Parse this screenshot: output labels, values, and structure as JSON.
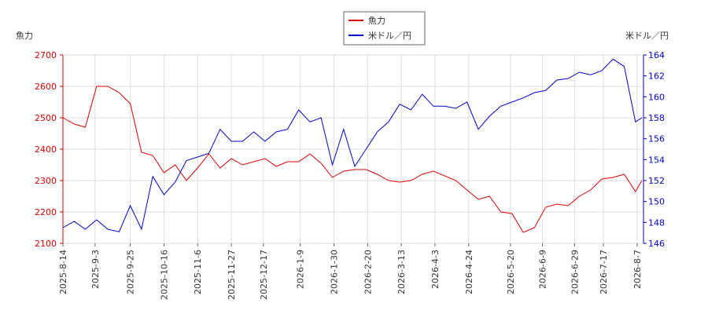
{
  "chart_data": {
    "type": "line",
    "ylabel": "魚力",
    "y2label": "米ドル／円",
    "x": [
      "2025-8-14",
      "2025-8-21",
      "2025-8-28",
      "2025-9-4",
      "2025-9-11",
      "2025-9-18",
      "2025-9-25",
      "2025-10-2",
      "2025-10-9",
      "2025-10-16",
      "2025-10-23",
      "2025-10-30",
      "2025-11-6",
      "2025-11-13",
      "2025-11-20",
      "2025-11-27",
      "2025-12-4",
      "2025-12-11",
      "2025-12-18",
      "2025-12-25",
      "2026-1-1",
      "2026-1-8",
      "2026-1-15",
      "2026-1-22",
      "2026-1-29",
      "2026-2-5",
      "2026-2-12",
      "2026-2-19",
      "2026-2-26",
      "2026-3-5",
      "2026-3-12",
      "2026-3-19",
      "2026-3-26",
      "2026-4-2",
      "2026-4-9",
      "2026-4-16",
      "2026-4-23",
      "2026-4-30",
      "2026-5-7",
      "2026-5-14",
      "2026-5-21",
      "2026-5-28",
      "2026-6-4",
      "2026-6-11",
      "2026-6-18",
      "2026-6-25",
      "2026-7-2",
      "2026-7-9",
      "2026-7-16",
      "2026-7-23",
      "2026-7-30",
      "2026-8-6",
      "2026-8-10"
    ],
    "series": [
      {
        "name": "魚力",
        "color": "#dd0000",
        "axis": "y",
        "values": [
          2500,
          2480,
          2470,
          2600,
          2600,
          2580,
          2545,
          2390,
          2380,
          2325,
          2350,
          2300,
          2340,
          2385,
          2340,
          2370,
          2350,
          2360,
          2370,
          2345,
          2360,
          2360,
          2385,
          2355,
          2310,
          2330,
          2335,
          2335,
          2320,
          2300,
          2295,
          2300,
          2320,
          2330,
          2315,
          2300,
          2270,
          2240,
          2250,
          2200,
          2195,
          2135,
          2150,
          2215,
          2225,
          2220,
          2250,
          2270,
          2305,
          2310,
          2320,
          2265,
          2300
        ]
      },
      {
        "name": "米ドル／円",
        "color": "#0000cc",
        "axis": "y2",
        "values": [
          147.5,
          148.1,
          147.35,
          148.25,
          147.35,
          147.1,
          149.6,
          147.35,
          152.4,
          150.65,
          151.85,
          153.9,
          154.25,
          154.6,
          156.9,
          155.75,
          155.75,
          156.65,
          155.75,
          156.65,
          156.9,
          158.75,
          157.6,
          158,
          153.5,
          156.9,
          153.35,
          155,
          156.65,
          157.6,
          159.3,
          158.75,
          160.25,
          159.1,
          159.1,
          158.9,
          159.5,
          156.9,
          158.15,
          159.1,
          159.5,
          159.9,
          160.4,
          160.6,
          161.6,
          161.75,
          162.35,
          162.1,
          162.5,
          163.6,
          162.9,
          157.6,
          158
        ]
      }
    ],
    "xlim": [
      "2025-8-14",
      "2026-8-11"
    ],
    "xticks": [
      "2025-8-14",
      "2025-9-3",
      "2025-9-25",
      "2025-10-16",
      "2025-11-6",
      "2025-11-27",
      "2025-12-17",
      "2026-1-9",
      "2026-1-30",
      "2026-2-20",
      "2026-3-13",
      "2026-4-3",
      "2026-4-24",
      "2026-5-20",
      "2026-6-9",
      "2026-6-29",
      "2026-7-17",
      "2026-8-7"
    ],
    "ylim": [
      2100,
      2700
    ],
    "yticks": [
      2100,
      2200,
      2300,
      2400,
      2500,
      2600,
      2700
    ],
    "y2lim": [
      146,
      164
    ],
    "y2ticks": [
      146,
      148,
      150,
      152,
      154,
      156,
      158,
      160,
      162,
      164
    ],
    "grid": true,
    "legend": "top"
  }
}
